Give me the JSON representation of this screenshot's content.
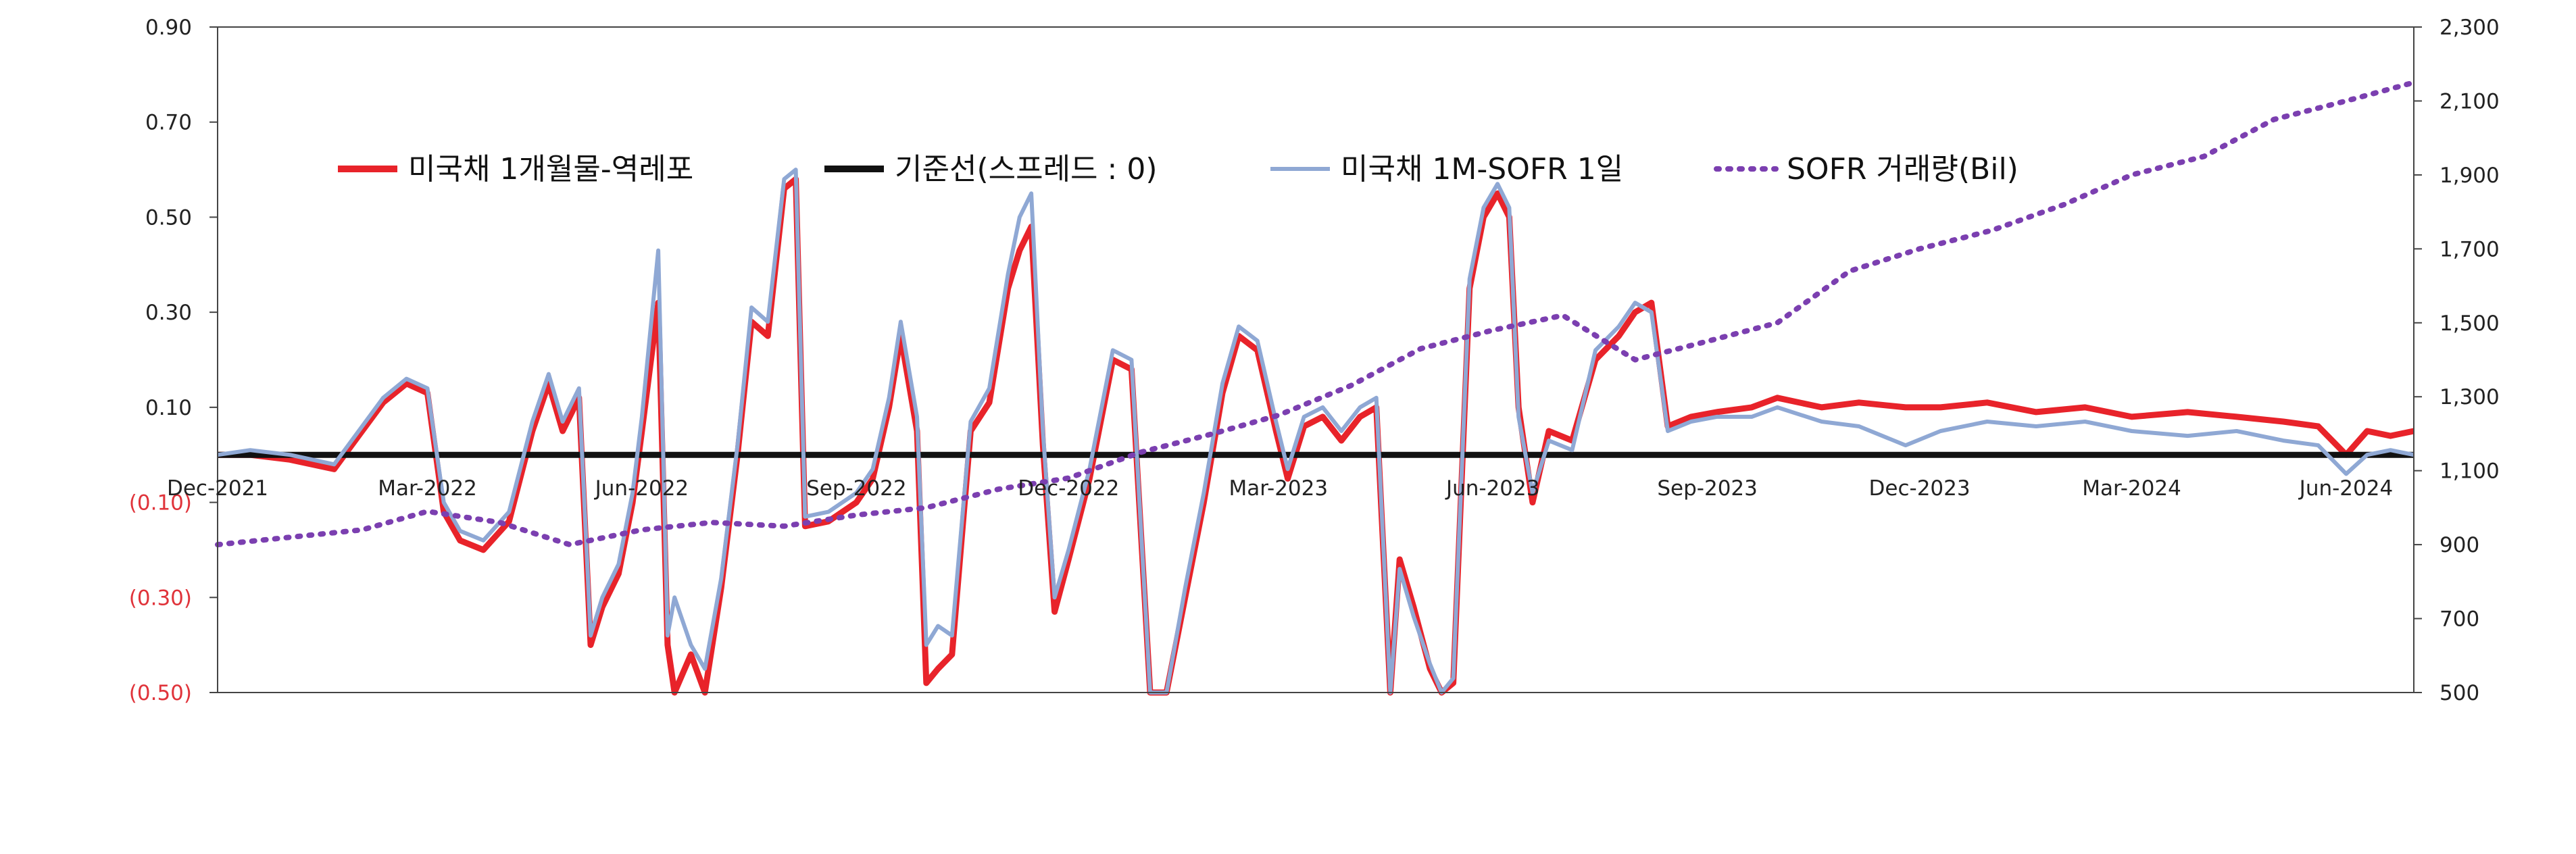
{
  "chart_data": {
    "type": "line",
    "title": "",
    "left_axis": {
      "range": [
        -0.5,
        0.9
      ],
      "ticks": [
        0.9,
        0.7,
        0.5,
        0.3,
        0.1,
        -0.1,
        -0.3,
        -0.5
      ],
      "tick_labels": [
        "0.90",
        "0.70",
        "0.50",
        "0.30",
        "0.10",
        "(0.10)",
        "(0.30)",
        "(0.50)"
      ]
    },
    "right_axis": {
      "range": [
        500,
        2300
      ],
      "ticks": [
        2300,
        2100,
        1900,
        1700,
        1500,
        1300,
        1100,
        900,
        700,
        500
      ],
      "tick_labels": [
        "2,300",
        "2,100",
        "1,900",
        "1,700",
        "1,500",
        "1,300",
        "1,100",
        "900",
        "700",
        "500"
      ]
    },
    "x_axis": {
      "range": [
        "2021-12-01",
        "2024-06-30"
      ],
      "tick_labels": [
        "Dec-2021",
        "Mar-2022",
        "Jun-2022",
        "Sep-2022",
        "Dec-2022",
        "Mar-2023",
        "Jun-2023",
        "Sep-2023",
        "Dec-2023",
        "Mar-2024",
        "Jun-2024"
      ],
      "tick_dates": [
        "2021-12-01",
        "2022-03-01",
        "2022-06-01",
        "2022-09-01",
        "2022-12-01",
        "2023-03-01",
        "2023-06-01",
        "2023-09-01",
        "2023-12-01",
        "2024-03-01",
        "2024-06-01"
      ]
    },
    "grid": false,
    "legend_position": "top",
    "series": [
      {
        "name": "미국채 1개월물-역레포",
        "axis": "left",
        "color": "#e8232a",
        "style": "solid",
        "points": [
          [
            "2021-12-01",
            0.0
          ],
          [
            "2021-12-15",
            0.0
          ],
          [
            "2022-01-01",
            -0.01
          ],
          [
            "2022-01-20",
            -0.03
          ],
          [
            "2022-02-01",
            0.05
          ],
          [
            "2022-02-10",
            0.11
          ],
          [
            "2022-02-20",
            0.15
          ],
          [
            "2022-03-01",
            0.13
          ],
          [
            "2022-03-08",
            -0.12
          ],
          [
            "2022-03-15",
            -0.18
          ],
          [
            "2022-03-25",
            -0.2
          ],
          [
            "2022-04-05",
            -0.14
          ],
          [
            "2022-04-15",
            0.05
          ],
          [
            "2022-04-22",
            0.15
          ],
          [
            "2022-04-28",
            0.05
          ],
          [
            "2022-05-05",
            0.12
          ],
          [
            "2022-05-10",
            -0.4
          ],
          [
            "2022-05-15",
            -0.32
          ],
          [
            "2022-05-22",
            -0.25
          ],
          [
            "2022-05-28",
            -0.1
          ],
          [
            "2022-06-01",
            0.05
          ],
          [
            "2022-06-08",
            0.32
          ],
          [
            "2022-06-12",
            -0.4
          ],
          [
            "2022-06-15",
            -0.5
          ],
          [
            "2022-06-22",
            -0.42
          ],
          [
            "2022-06-28",
            -0.5
          ],
          [
            "2022-07-05",
            -0.28
          ],
          [
            "2022-07-12",
            0.0
          ],
          [
            "2022-07-18",
            0.28
          ],
          [
            "2022-07-25",
            0.25
          ],
          [
            "2022-08-01",
            0.56
          ],
          [
            "2022-08-06",
            0.58
          ],
          [
            "2022-08-10",
            -0.15
          ],
          [
            "2022-08-20",
            -0.14
          ],
          [
            "2022-09-01",
            -0.1
          ],
          [
            "2022-09-08",
            -0.05
          ],
          [
            "2022-09-15",
            0.1
          ],
          [
            "2022-09-20",
            0.25
          ],
          [
            "2022-09-27",
            0.05
          ],
          [
            "2022-10-01",
            -0.48
          ],
          [
            "2022-10-06",
            -0.45
          ],
          [
            "2022-10-12",
            -0.42
          ],
          [
            "2022-10-20",
            0.05
          ],
          [
            "2022-10-28",
            0.11
          ],
          [
            "2022-11-05",
            0.35
          ],
          [
            "2022-11-10",
            0.43
          ],
          [
            "2022-11-15",
            0.48
          ],
          [
            "2022-11-20",
            0.02
          ],
          [
            "2022-11-25",
            -0.33
          ],
          [
            "2022-12-01",
            -0.22
          ],
          [
            "2022-12-10",
            -0.05
          ],
          [
            "2022-12-20",
            0.2
          ],
          [
            "2022-12-28",
            0.18
          ],
          [
            "2023-01-05",
            -0.5
          ],
          [
            "2023-01-12",
            -0.5
          ],
          [
            "2023-01-20",
            -0.3
          ],
          [
            "2023-01-28",
            -0.1
          ],
          [
            "2023-02-05",
            0.13
          ],
          [
            "2023-02-12",
            0.25
          ],
          [
            "2023-02-20",
            0.22
          ],
          [
            "2023-02-28",
            0.05
          ],
          [
            "2023-03-05",
            -0.05
          ],
          [
            "2023-03-12",
            0.06
          ],
          [
            "2023-03-20",
            0.08
          ],
          [
            "2023-03-28",
            0.03
          ],
          [
            "2023-04-05",
            0.08
          ],
          [
            "2023-04-12",
            0.1
          ],
          [
            "2023-04-18",
            -0.5
          ],
          [
            "2023-04-22",
            -0.22
          ],
          [
            "2023-04-28",
            -0.32
          ],
          [
            "2023-05-05",
            -0.45
          ],
          [
            "2023-05-10",
            -0.5
          ],
          [
            "2023-05-15",
            -0.48
          ],
          [
            "2023-05-22",
            0.35
          ],
          [
            "2023-05-28",
            0.5
          ],
          [
            "2023-06-03",
            0.55
          ],
          [
            "2023-06-08",
            0.5
          ],
          [
            "2023-06-12",
            0.1
          ],
          [
            "2023-06-18",
            -0.1
          ],
          [
            "2023-06-25",
            0.05
          ],
          [
            "2023-07-05",
            0.03
          ],
          [
            "2023-07-15",
            0.2
          ],
          [
            "2023-07-25",
            0.25
          ],
          [
            "2023-08-01",
            0.3
          ],
          [
            "2023-08-08",
            0.32
          ],
          [
            "2023-08-15",
            0.06
          ],
          [
            "2023-08-25",
            0.08
          ],
          [
            "2023-09-05",
            0.09
          ],
          [
            "2023-09-20",
            0.1
          ],
          [
            "2023-10-01",
            0.12
          ],
          [
            "2023-10-20",
            0.1
          ],
          [
            "2023-11-05",
            0.11
          ],
          [
            "2023-11-25",
            0.1
          ],
          [
            "2023-12-10",
            0.1
          ],
          [
            "2023-12-30",
            0.11
          ],
          [
            "2024-01-20",
            0.09
          ],
          [
            "2024-02-10",
            0.1
          ],
          [
            "2024-03-01",
            0.08
          ],
          [
            "2024-03-25",
            0.09
          ],
          [
            "2024-04-15",
            0.08
          ],
          [
            "2024-05-05",
            0.07
          ],
          [
            "2024-05-20",
            0.06
          ],
          [
            "2024-06-01",
            0.0
          ],
          [
            "2024-06-10",
            0.05
          ],
          [
            "2024-06-20",
            0.04
          ],
          [
            "2024-06-30",
            0.05
          ]
        ]
      },
      {
        "name": "기준선(스프레드 : 0)",
        "axis": "left",
        "color": "#111111",
        "style": "solid",
        "points": [
          [
            "2021-12-01",
            0
          ],
          [
            "2024-06-30",
            0
          ]
        ]
      },
      {
        "name": "미국채 1M-SOFR 1일",
        "axis": "left",
        "color": "#8fa8d4",
        "style": "solid",
        "points": [
          [
            "2021-12-01",
            0.0
          ],
          [
            "2021-12-15",
            0.01
          ],
          [
            "2022-01-01",
            0.0
          ],
          [
            "2022-01-20",
            -0.02
          ],
          [
            "2022-02-01",
            0.06
          ],
          [
            "2022-02-10",
            0.12
          ],
          [
            "2022-02-20",
            0.16
          ],
          [
            "2022-03-01",
            0.14
          ],
          [
            "2022-03-08",
            -0.1
          ],
          [
            "2022-03-15",
            -0.16
          ],
          [
            "2022-03-25",
            -0.18
          ],
          [
            "2022-04-05",
            -0.12
          ],
          [
            "2022-04-15",
            0.07
          ],
          [
            "2022-04-22",
            0.17
          ],
          [
            "2022-04-28",
            0.07
          ],
          [
            "2022-05-05",
            0.14
          ],
          [
            "2022-05-10",
            -0.38
          ],
          [
            "2022-05-15",
            -0.3
          ],
          [
            "2022-05-22",
            -0.23
          ],
          [
            "2022-05-28",
            -0.08
          ],
          [
            "2022-06-01",
            0.08
          ],
          [
            "2022-06-08",
            0.43
          ],
          [
            "2022-06-12",
            -0.38
          ],
          [
            "2022-06-15",
            -0.3
          ],
          [
            "2022-06-22",
            -0.4
          ],
          [
            "2022-06-28",
            -0.45
          ],
          [
            "2022-07-05",
            -0.26
          ],
          [
            "2022-07-12",
            0.02
          ],
          [
            "2022-07-18",
            0.31
          ],
          [
            "2022-07-25",
            0.28
          ],
          [
            "2022-08-01",
            0.58
          ],
          [
            "2022-08-06",
            0.6
          ],
          [
            "2022-08-10",
            -0.13
          ],
          [
            "2022-08-20",
            -0.12
          ],
          [
            "2022-09-01",
            -0.08
          ],
          [
            "2022-09-08",
            -0.03
          ],
          [
            "2022-09-15",
            0.12
          ],
          [
            "2022-09-20",
            0.28
          ],
          [
            "2022-09-27",
            0.08
          ],
          [
            "2022-10-01",
            -0.4
          ],
          [
            "2022-10-06",
            -0.36
          ],
          [
            "2022-10-12",
            -0.38
          ],
          [
            "2022-10-20",
            0.07
          ],
          [
            "2022-10-28",
            0.14
          ],
          [
            "2022-11-05",
            0.38
          ],
          [
            "2022-11-10",
            0.5
          ],
          [
            "2022-11-15",
            0.55
          ],
          [
            "2022-11-20",
            0.05
          ],
          [
            "2022-11-25",
            -0.3
          ],
          [
            "2022-12-01",
            -0.2
          ],
          [
            "2022-12-10",
            -0.03
          ],
          [
            "2022-12-20",
            0.22
          ],
          [
            "2022-12-28",
            0.2
          ],
          [
            "2023-01-05",
            -0.5
          ],
          [
            "2023-01-12",
            -0.5
          ],
          [
            "2023-01-20",
            -0.28
          ],
          [
            "2023-01-28",
            -0.08
          ],
          [
            "2023-02-05",
            0.15
          ],
          [
            "2023-02-12",
            0.27
          ],
          [
            "2023-02-20",
            0.24
          ],
          [
            "2023-02-28",
            0.07
          ],
          [
            "2023-03-05",
            -0.03
          ],
          [
            "2023-03-12",
            0.08
          ],
          [
            "2023-03-20",
            0.1
          ],
          [
            "2023-03-28",
            0.05
          ],
          [
            "2023-04-05",
            0.1
          ],
          [
            "2023-04-12",
            0.12
          ],
          [
            "2023-04-18",
            -0.5
          ],
          [
            "2023-04-22",
            -0.24
          ],
          [
            "2023-04-28",
            -0.34
          ],
          [
            "2023-05-05",
            -0.44
          ],
          [
            "2023-05-10",
            -0.5
          ],
          [
            "2023-05-15",
            -0.47
          ],
          [
            "2023-05-22",
            0.37
          ],
          [
            "2023-05-28",
            0.52
          ],
          [
            "2023-06-03",
            0.57
          ],
          [
            "2023-06-08",
            0.52
          ],
          [
            "2023-06-12",
            0.08
          ],
          [
            "2023-06-18",
            -0.08
          ],
          [
            "2023-06-25",
            0.03
          ],
          [
            "2023-07-05",
            0.01
          ],
          [
            "2023-07-15",
            0.22
          ],
          [
            "2023-07-25",
            0.27
          ],
          [
            "2023-08-01",
            0.32
          ],
          [
            "2023-08-08",
            0.3
          ],
          [
            "2023-08-15",
            0.05
          ],
          [
            "2023-08-25",
            0.07
          ],
          [
            "2023-09-05",
            0.08
          ],
          [
            "2023-09-20",
            0.08
          ],
          [
            "2023-10-01",
            0.1
          ],
          [
            "2023-10-20",
            0.07
          ],
          [
            "2023-11-05",
            0.06
          ],
          [
            "2023-11-25",
            0.02
          ],
          [
            "2023-12-10",
            0.05
          ],
          [
            "2023-12-30",
            0.07
          ],
          [
            "2024-01-20",
            0.06
          ],
          [
            "2024-02-10",
            0.07
          ],
          [
            "2024-03-01",
            0.05
          ],
          [
            "2024-03-25",
            0.04
          ],
          [
            "2024-04-15",
            0.05
          ],
          [
            "2024-05-05",
            0.03
          ],
          [
            "2024-05-20",
            0.02
          ],
          [
            "2024-06-01",
            -0.04
          ],
          [
            "2024-06-10",
            0.0
          ],
          [
            "2024-06-20",
            0.01
          ],
          [
            "2024-06-30",
            0.0
          ]
        ]
      },
      {
        "name": "SOFR 거래량(Bil)",
        "axis": "right",
        "color": "#7b3fb0",
        "style": "dotted",
        "points": [
          [
            "2021-12-01",
            900
          ],
          [
            "2022-01-01",
            920
          ],
          [
            "2022-02-01",
            940
          ],
          [
            "2022-03-01",
            990
          ],
          [
            "2022-04-01",
            960
          ],
          [
            "2022-05-01",
            900
          ],
          [
            "2022-06-01",
            940
          ],
          [
            "2022-07-01",
            960
          ],
          [
            "2022-08-01",
            950
          ],
          [
            "2022-09-01",
            980
          ],
          [
            "2022-10-01",
            1000
          ],
          [
            "2022-11-01",
            1050
          ],
          [
            "2022-12-01",
            1080
          ],
          [
            "2023-01-01",
            1150
          ],
          [
            "2023-02-01",
            1200
          ],
          [
            "2023-03-01",
            1250
          ],
          [
            "2023-04-01",
            1330
          ],
          [
            "2023-05-01",
            1430
          ],
          [
            "2023-06-01",
            1480
          ],
          [
            "2023-07-01",
            1520
          ],
          [
            "2023-08-01",
            1400
          ],
          [
            "2023-09-01",
            1450
          ],
          [
            "2023-10-01",
            1500
          ],
          [
            "2023-11-01",
            1640
          ],
          [
            "2023-12-01",
            1700
          ],
          [
            "2024-01-01",
            1750
          ],
          [
            "2024-02-01",
            1820
          ],
          [
            "2024-03-01",
            1900
          ],
          [
            "2024-04-01",
            1950
          ],
          [
            "2024-05-01",
            2050
          ],
          [
            "2024-06-01",
            2100
          ],
          [
            "2024-06-30",
            2150
          ]
        ]
      }
    ]
  }
}
